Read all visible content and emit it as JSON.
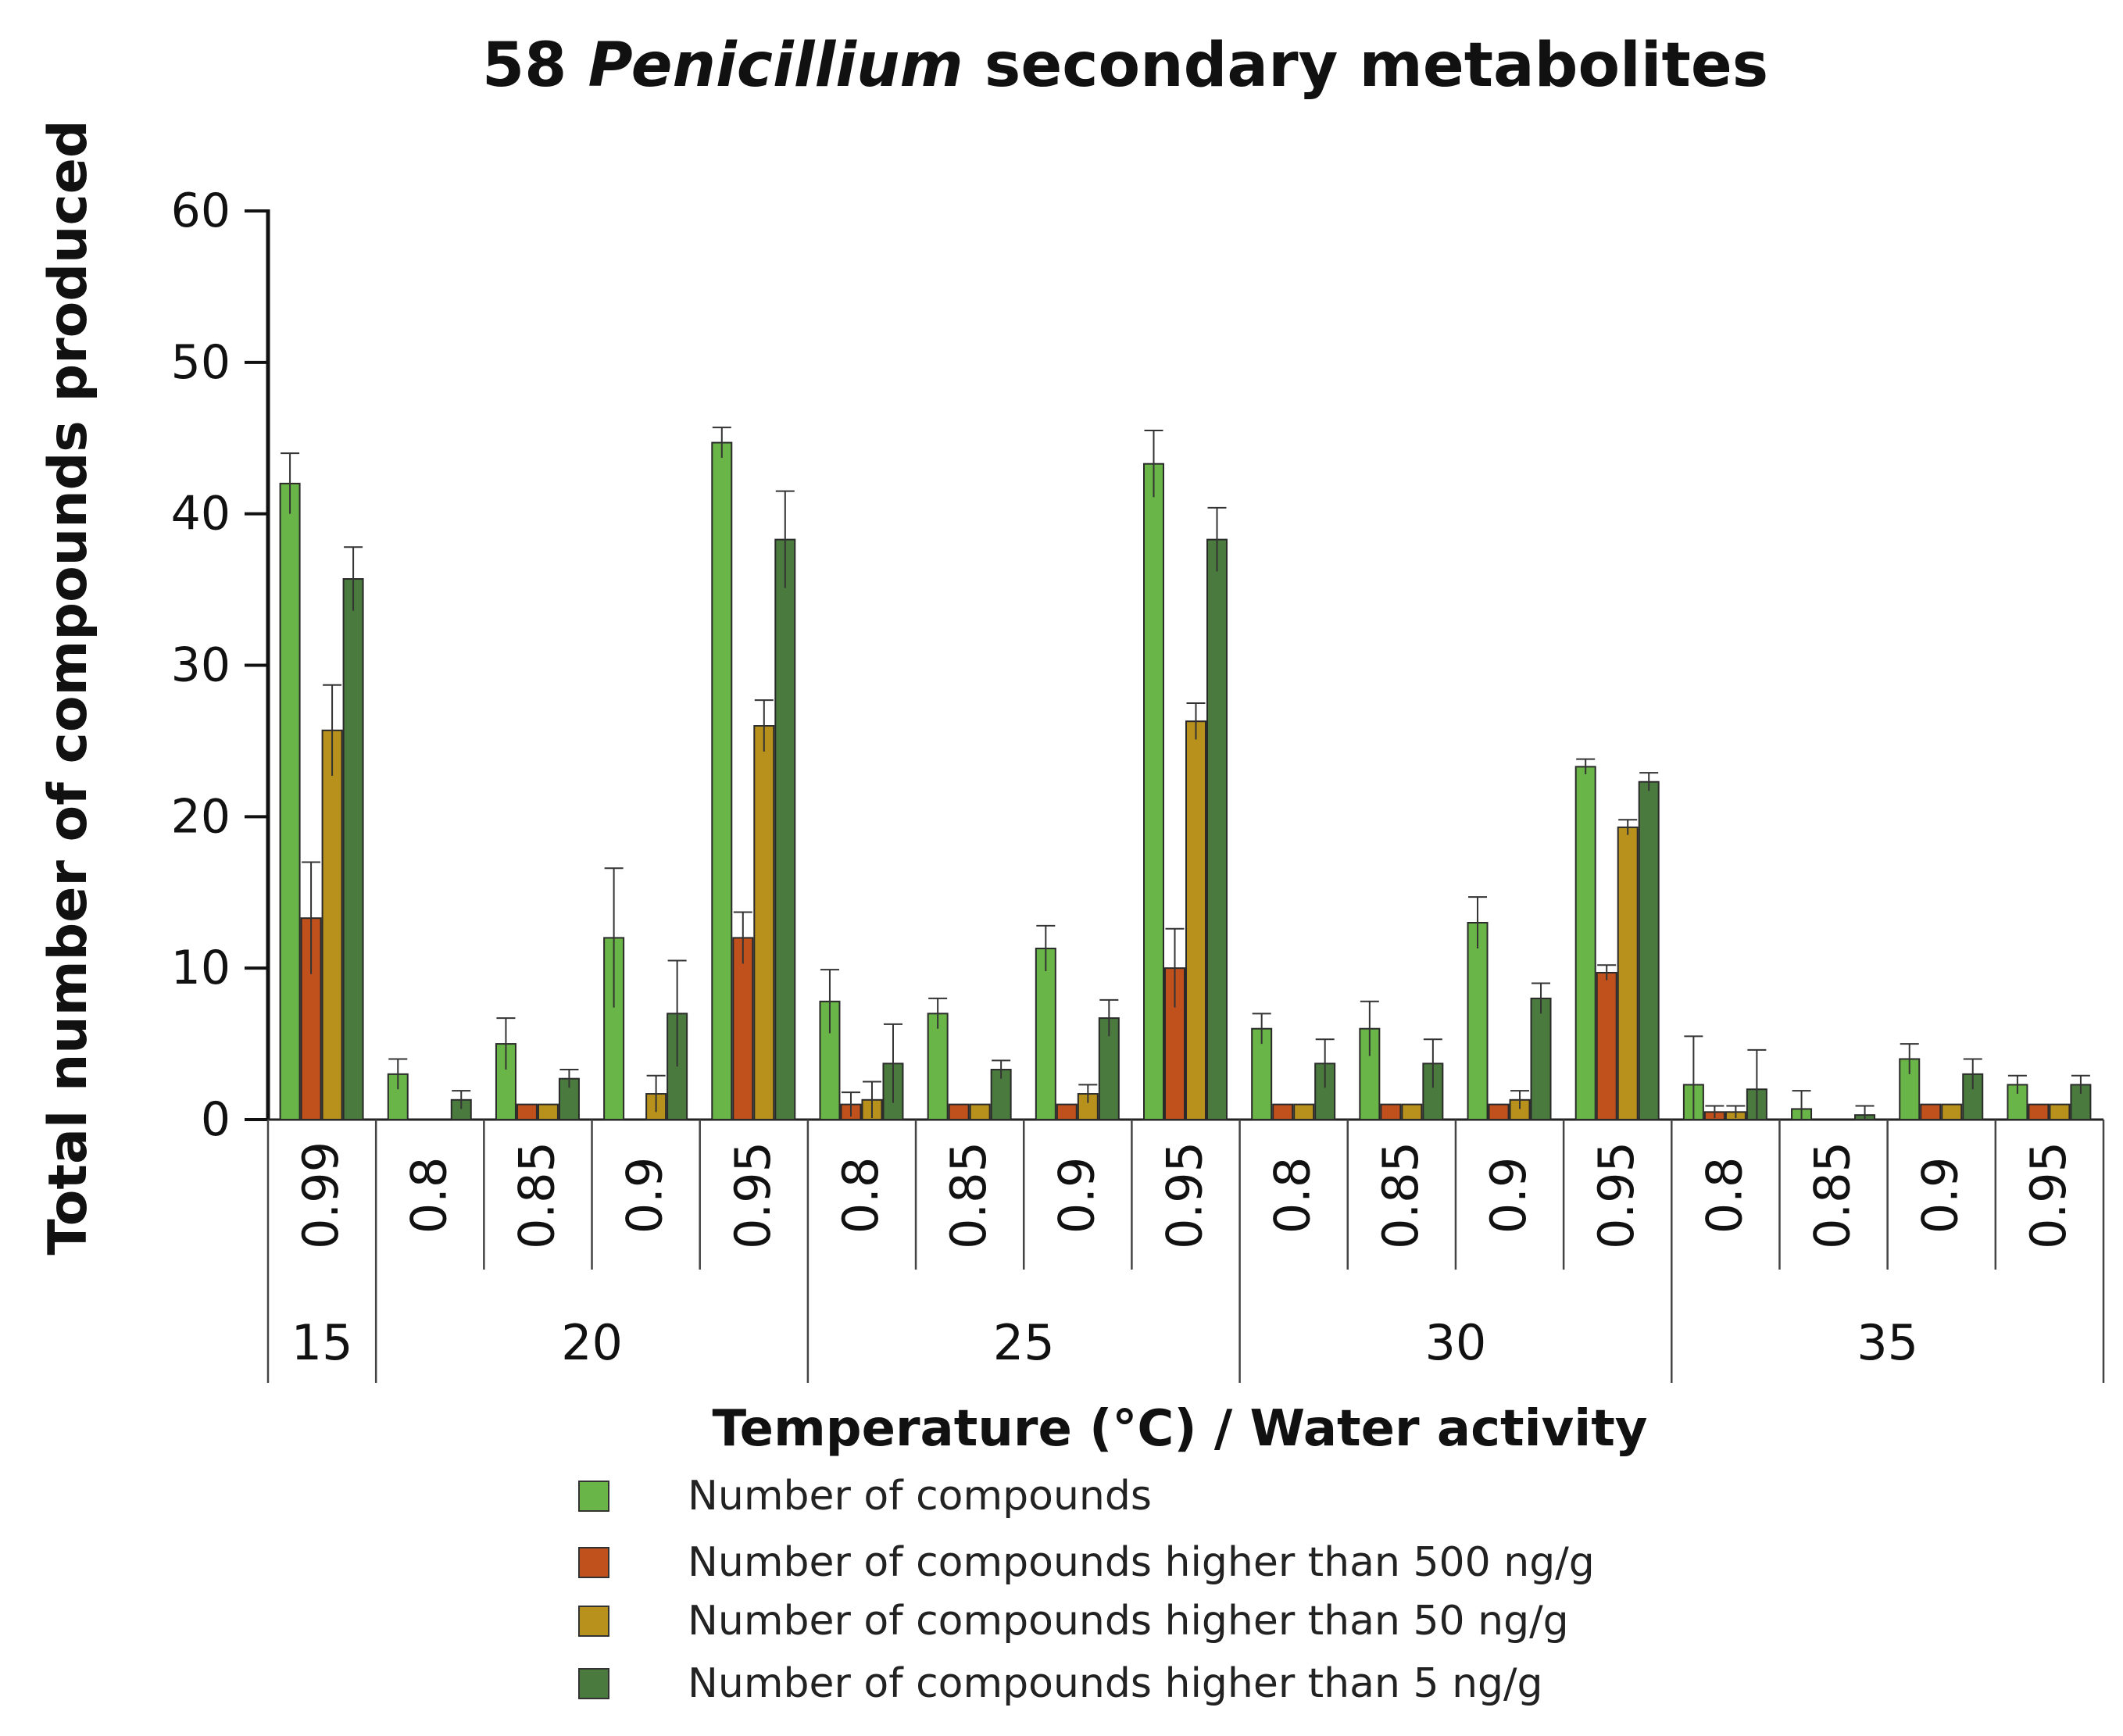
{
  "chart_data": {
    "type": "bar",
    "title_prefix": "58 ",
    "title_italic": "Penicillium",
    "title_suffix": " secondary metabolites",
    "ylabel": "Total number of compounds produced",
    "xlabel": "Temperature (°C) / Water activity",
    "ylim": [
      0,
      60
    ],
    "yticks": [
      0,
      10,
      20,
      30,
      40,
      50,
      60
    ],
    "temperature_groups": [
      {
        "label": "15",
        "size": 1
      },
      {
        "label": "20",
        "size": 4
      },
      {
        "label": "25",
        "size": 4
      },
      {
        "label": "30",
        "size": 4
      },
      {
        "label": "35",
        "size": 4
      }
    ],
    "categories": [
      "0.99",
      "0.8",
      "0.85",
      "0.9",
      "0.95",
      "0.8",
      "0.85",
      "0.9",
      "0.95",
      "0.8",
      "0.85",
      "0.9",
      "0.95",
      "0.8",
      "0.85",
      "0.9",
      "0.95"
    ],
    "series": [
      {
        "name": "Number of compounds",
        "color": "#6ab547",
        "values": [
          42,
          3,
          5,
          12,
          44.7,
          7.8,
          7,
          11.3,
          43.3,
          6,
          6,
          13,
          23.3,
          2.3,
          0.7,
          4,
          2.3
        ],
        "errors": [
          2,
          1,
          1.7,
          4.6,
          1,
          2.1,
          1,
          1.5,
          2.2,
          1,
          1.8,
          1.7,
          0.5,
          3.2,
          1.2,
          1,
          0.6
        ]
      },
      {
        "name": "Number of compounds higher than 500 ng/g",
        "color": "#c0501c",
        "values": [
          13.3,
          0,
          1,
          0,
          12,
          1,
          1,
          1,
          10,
          1,
          1,
          1,
          9.7,
          0.5,
          0,
          1,
          1
        ],
        "errors": [
          3.7,
          0,
          0,
          0,
          1.7,
          0.8,
          0,
          0,
          2.6,
          0,
          0,
          0,
          0.5,
          0.4,
          0,
          0,
          0
        ]
      },
      {
        "name": "Number of compounds higher than 50 ng/g",
        "color": "#b8901c",
        "values": [
          25.7,
          0,
          1,
          1.7,
          26,
          1.3,
          1,
          1.7,
          26.3,
          1,
          1,
          1.3,
          19.3,
          0.5,
          0,
          1,
          1
        ],
        "errors": [
          3,
          0,
          0,
          1.2,
          1.7,
          1.2,
          0,
          0.6,
          1.2,
          0,
          0,
          0.6,
          0.5,
          0.4,
          0,
          0,
          0
        ]
      },
      {
        "name": "Number of compounds higher than 5 ng/g",
        "color": "#4a7a3e",
        "values": [
          35.7,
          1.3,
          2.7,
          7,
          38.3,
          3.7,
          3.3,
          6.7,
          38.3,
          3.7,
          3.7,
          8,
          22.3,
          2,
          0.3,
          3,
          2.3
        ],
        "errors": [
          2.1,
          0.6,
          0.6,
          3.5,
          3.2,
          2.6,
          0.6,
          1.2,
          2.1,
          1.6,
          1.6,
          1,
          0.6,
          2.6,
          0.6,
          1,
          0.6
        ]
      }
    ]
  }
}
